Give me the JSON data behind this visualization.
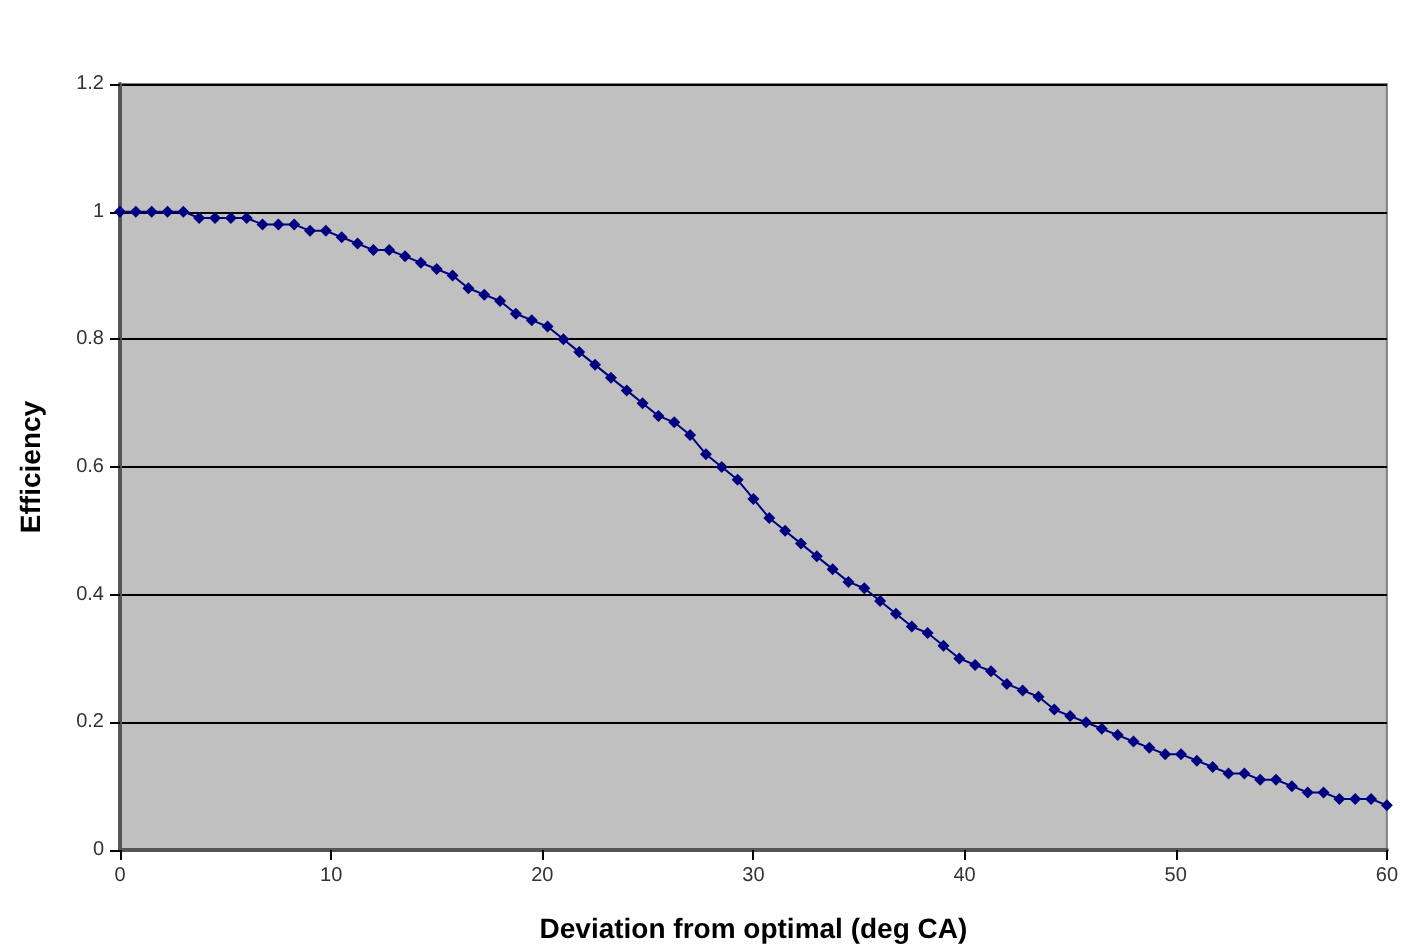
{
  "chart_data": {
    "type": "line",
    "xlabel": "Deviation from optimal (deg CA)",
    "ylabel": "Efficiency",
    "x": [
      0,
      0.75,
      1.5,
      2.25,
      3,
      3.75,
      4.5,
      5.25,
      6,
      6.75,
      7.5,
      8.25,
      9,
      9.75,
      10.5,
      11.25,
      12,
      12.75,
      13.5,
      14.25,
      15,
      15.75,
      16.5,
      17.25,
      18,
      18.75,
      19.5,
      20.25,
      21,
      21.75,
      22.5,
      23.25,
      24,
      24.75,
      25.5,
      26.25,
      27,
      27.75,
      28.5,
      29.25,
      30,
      30.75,
      31.5,
      32.25,
      33,
      33.75,
      34.5,
      35.25,
      36,
      36.75,
      37.5,
      38.25,
      39,
      39.75,
      40.5,
      41.25,
      42,
      42.75,
      43.5,
      44.25,
      45,
      45.75,
      46.5,
      47.25,
      48,
      48.75,
      49.5,
      50.25,
      51,
      51.75,
      52.5,
      53.25,
      54,
      54.75,
      55.5,
      56.25,
      57,
      57.75,
      58.5,
      59.25,
      60
    ],
    "series": [
      {
        "color": "#000080",
        "values": [
          1,
          1,
          1,
          1,
          1,
          0.99,
          0.99,
          0.99,
          0.99,
          0.98,
          0.98,
          0.98,
          0.97,
          0.97,
          0.96,
          0.95,
          0.94,
          0.94,
          0.93,
          0.92,
          0.91,
          0.9,
          0.88,
          0.87,
          0.86,
          0.84,
          0.83,
          0.82,
          0.8,
          0.78,
          0.76,
          0.74,
          0.72,
          0.7,
          0.68,
          0.67,
          0.65,
          0.62,
          0.6,
          0.58,
          0.55,
          0.52,
          0.5,
          0.48,
          0.46,
          0.44,
          0.42,
          0.41,
          0.39,
          0.37,
          0.35,
          0.34,
          0.32,
          0.3,
          0.29,
          0.28,
          0.26,
          0.25,
          0.24,
          0.22,
          0.21,
          0.2,
          0.19,
          0.18,
          0.17,
          0.16,
          0.15,
          0.15,
          0.14,
          0.13,
          0.12,
          0.12,
          0.11,
          0.11,
          0.1,
          0.09,
          0.09,
          0.08,
          0.08,
          0.08,
          0.07
        ]
      }
    ],
    "xlim": [
      0,
      60
    ],
    "xticks": [
      0,
      10,
      20,
      30,
      40,
      50,
      60
    ],
    "ylim": [
      0,
      1.2
    ],
    "yticks": [
      0,
      0.2,
      0.4,
      0.6,
      0.8,
      1,
      1.2
    ],
    "grid": "y",
    "marker": "diamond",
    "line_style": "solid"
  }
}
